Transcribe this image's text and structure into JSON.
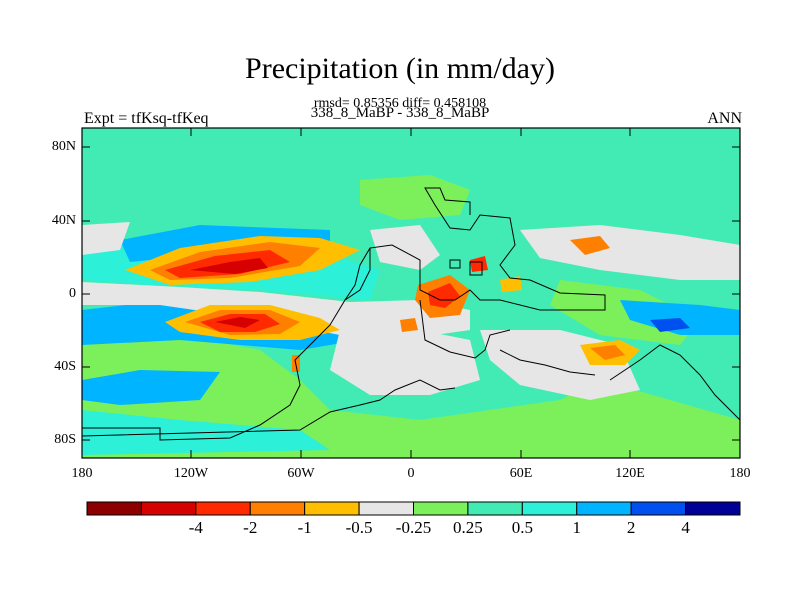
{
  "title": "Precipitation (in mm/day)",
  "stats_line": "rmsd= 0.85356 diff= 0.458108",
  "case_line": "338_8_MaBP - 338_8_MaBP",
  "expt_label": "Expt = tfKsq-tfKeq",
  "season_label": "ANN",
  "map": {
    "lat_ticks": [
      "80N",
      "40N",
      "0",
      "40S",
      "80S"
    ],
    "lon_ticks": [
      "180",
      "120W",
      "60W",
      "0",
      "60E",
      "120E",
      "180"
    ]
  },
  "colorbar": {
    "colors": [
      "#8c0000",
      "#d70000",
      "#ff2a00",
      "#ff7f00",
      "#ffbf00",
      "#e6e6e6",
      "#7cf05a",
      "#43ebb4",
      "#2cf0d8",
      "#00b4ff",
      "#0050f0",
      "#000096"
    ],
    "labels": [
      "-4",
      "-2",
      "-1",
      "-0.5",
      "-0.25",
      "0.25",
      "0.5",
      "1",
      "2",
      "4"
    ]
  }
}
